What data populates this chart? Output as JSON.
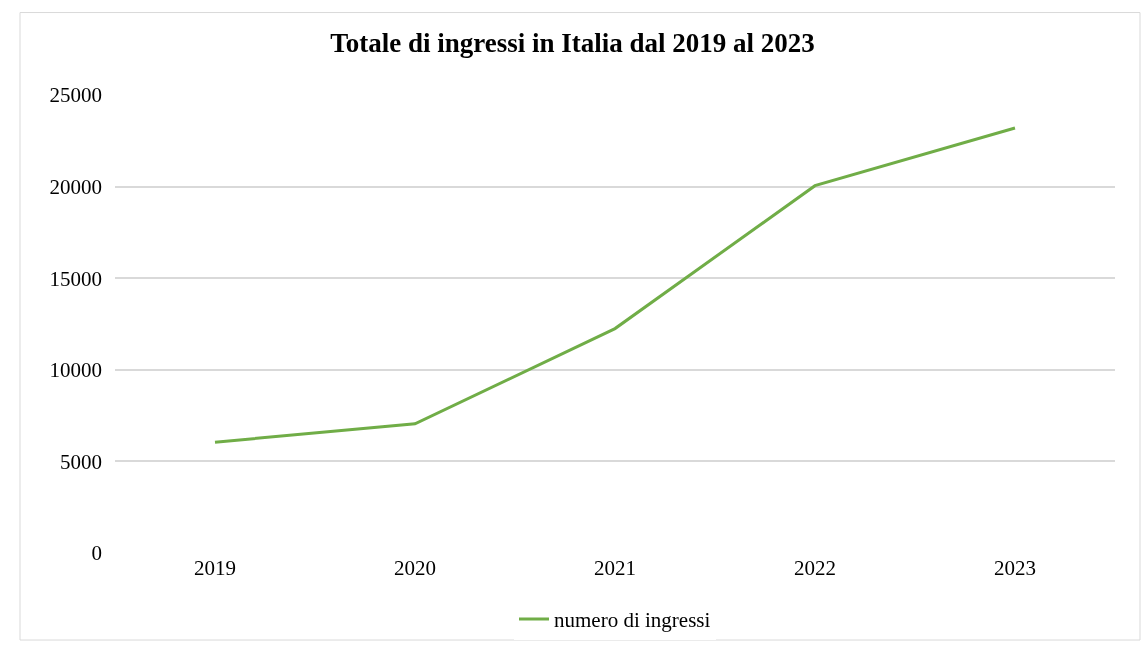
{
  "chart_data": {
    "type": "line",
    "title": "Totale di ingressi in Italia dal 2019 al 2023",
    "categories": [
      "2019",
      "2020",
      "2021",
      "2022",
      "2023"
    ],
    "series": [
      {
        "name": "numero di ingressi",
        "color": "#70ad47",
        "values": [
          6050,
          7050,
          12250,
          20050,
          23200
        ]
      }
    ],
    "ylim": [
      0,
      25000
    ],
    "yticks": [
      0,
      5000,
      10000,
      15000,
      20000,
      25000
    ],
    "grid": "y",
    "legend": "bottom",
    "marker": "none",
    "line_style": "solid"
  }
}
